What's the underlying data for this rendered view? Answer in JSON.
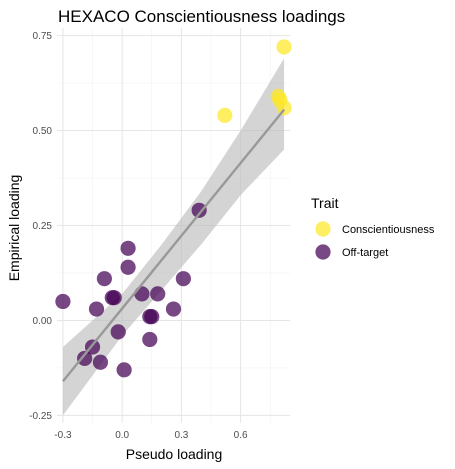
{
  "chart_data": {
    "type": "scatter",
    "title": "HEXACO Conscientiousness loadings",
    "xlabel": "Pseudo loading",
    "ylabel": "Empirical loading",
    "xlim": [
      -0.33,
      0.85
    ],
    "ylim": [
      -0.27,
      0.77
    ],
    "xticks": [
      -0.3,
      0.0,
      0.3,
      0.6
    ],
    "xtick_labels": [
      "-0.3",
      "0.0",
      "0.3",
      "0.6"
    ],
    "yticks": [
      -0.25,
      0.0,
      0.25,
      0.5,
      0.75
    ],
    "ytick_labels": [
      "-0.25",
      "0.00",
      "0.25",
      "0.50",
      "0.75"
    ],
    "grid": true,
    "legend": {
      "title": "Trait",
      "position": "right"
    },
    "series": [
      {
        "name": "Conscientiousness",
        "color": "#FDE725",
        "points": [
          {
            "x": 0.82,
            "y": 0.72
          },
          {
            "x": 0.79,
            "y": 0.59
          },
          {
            "x": 0.82,
            "y": 0.56
          },
          {
            "x": 0.8,
            "y": 0.58
          },
          {
            "x": 0.52,
            "y": 0.54
          }
        ]
      },
      {
        "name": "Off-target",
        "color": "#440154",
        "points": [
          {
            "x": -0.3,
            "y": 0.05
          },
          {
            "x": -0.15,
            "y": -0.07
          },
          {
            "x": -0.19,
            "y": -0.1
          },
          {
            "x": -0.11,
            "y": -0.11
          },
          {
            "x": -0.13,
            "y": 0.03
          },
          {
            "x": -0.09,
            "y": 0.11
          },
          {
            "x": -0.05,
            "y": 0.06
          },
          {
            "x": -0.04,
            "y": 0.06
          },
          {
            "x": -0.02,
            "y": -0.03
          },
          {
            "x": 0.01,
            "y": -0.13
          },
          {
            "x": 0.03,
            "y": 0.19
          },
          {
            "x": 0.03,
            "y": 0.14
          },
          {
            "x": 0.1,
            "y": 0.07
          },
          {
            "x": 0.14,
            "y": 0.01
          },
          {
            "x": 0.15,
            "y": 0.01
          },
          {
            "x": 0.14,
            "y": -0.05
          },
          {
            "x": 0.18,
            "y": 0.07
          },
          {
            "x": 0.26,
            "y": 0.03
          },
          {
            "x": 0.31,
            "y": 0.11
          },
          {
            "x": 0.39,
            "y": 0.29
          }
        ]
      }
    ],
    "trend": {
      "type": "linear",
      "color": "#999999",
      "band_color": "#bdbdbd",
      "line": [
        {
          "x": -0.3,
          "y": -0.16
        },
        {
          "x": 0.82,
          "y": 0.555
        }
      ],
      "band_upper": [
        {
          "x": -0.3,
          "y": -0.07
        },
        {
          "x": 0.0,
          "y": 0.07
        },
        {
          "x": 0.2,
          "y": 0.2
        },
        {
          "x": 0.4,
          "y": 0.34
        },
        {
          "x": 0.6,
          "y": 0.5
        },
        {
          "x": 0.82,
          "y": 0.69
        }
      ],
      "band_lower": [
        {
          "x": 0.82,
          "y": 0.45
        },
        {
          "x": 0.6,
          "y": 0.33
        },
        {
          "x": 0.4,
          "y": 0.2
        },
        {
          "x": 0.2,
          "y": 0.08
        },
        {
          "x": 0.0,
          "y": -0.04
        },
        {
          "x": -0.3,
          "y": -0.25
        }
      ]
    }
  }
}
